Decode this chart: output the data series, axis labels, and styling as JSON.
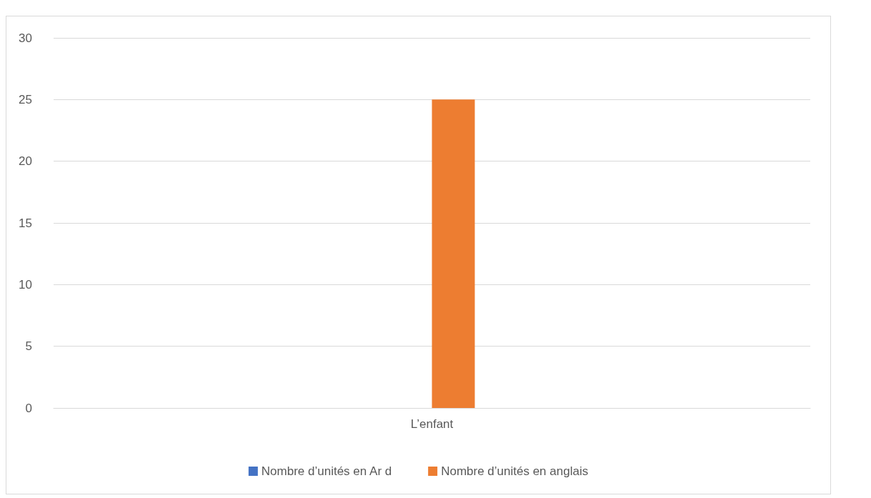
{
  "chart_data": {
    "type": "bar",
    "categories": [
      "L’enfant"
    ],
    "series": [
      {
        "name": "Nombre d’unités en Ar d",
        "color": "#4472c4",
        "values": [
          0
        ]
      },
      {
        "name": "Nombre d’unités en anglais",
        "color": "#ed7d31",
        "values": [
          25
        ]
      }
    ],
    "ylim": [
      0,
      30
    ],
    "yticks": [
      0,
      5,
      10,
      15,
      20,
      25,
      30
    ],
    "grid": "y",
    "legend": "bottom"
  }
}
